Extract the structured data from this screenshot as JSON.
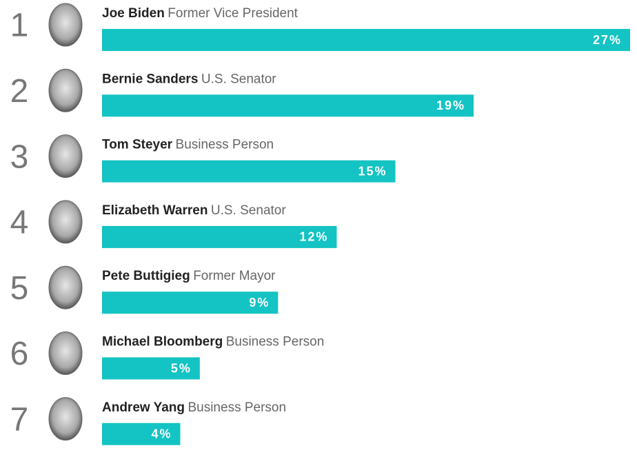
{
  "chart_data": {
    "type": "bar",
    "ranks": [
      1,
      2,
      3,
      4,
      5,
      6,
      7
    ],
    "categories": [
      "Joe Biden",
      "Bernie Sanders",
      "Tom Steyer",
      "Elizabeth Warren",
      "Pete Buttigieg",
      "Michael Bloomberg",
      "Andrew Yang"
    ],
    "descriptions": [
      "Former Vice President",
      "U.S. Senator",
      "Business Person",
      "U.S. Senator",
      "Former Mayor",
      "Business Person",
      "Business Person"
    ],
    "values": [
      27,
      19,
      15,
      12,
      9,
      5,
      4
    ],
    "value_labels": [
      "27%",
      "19%",
      "15%",
      "12%",
      "9%",
      "5%",
      "4%"
    ],
    "color": "#14c3c3"
  }
}
